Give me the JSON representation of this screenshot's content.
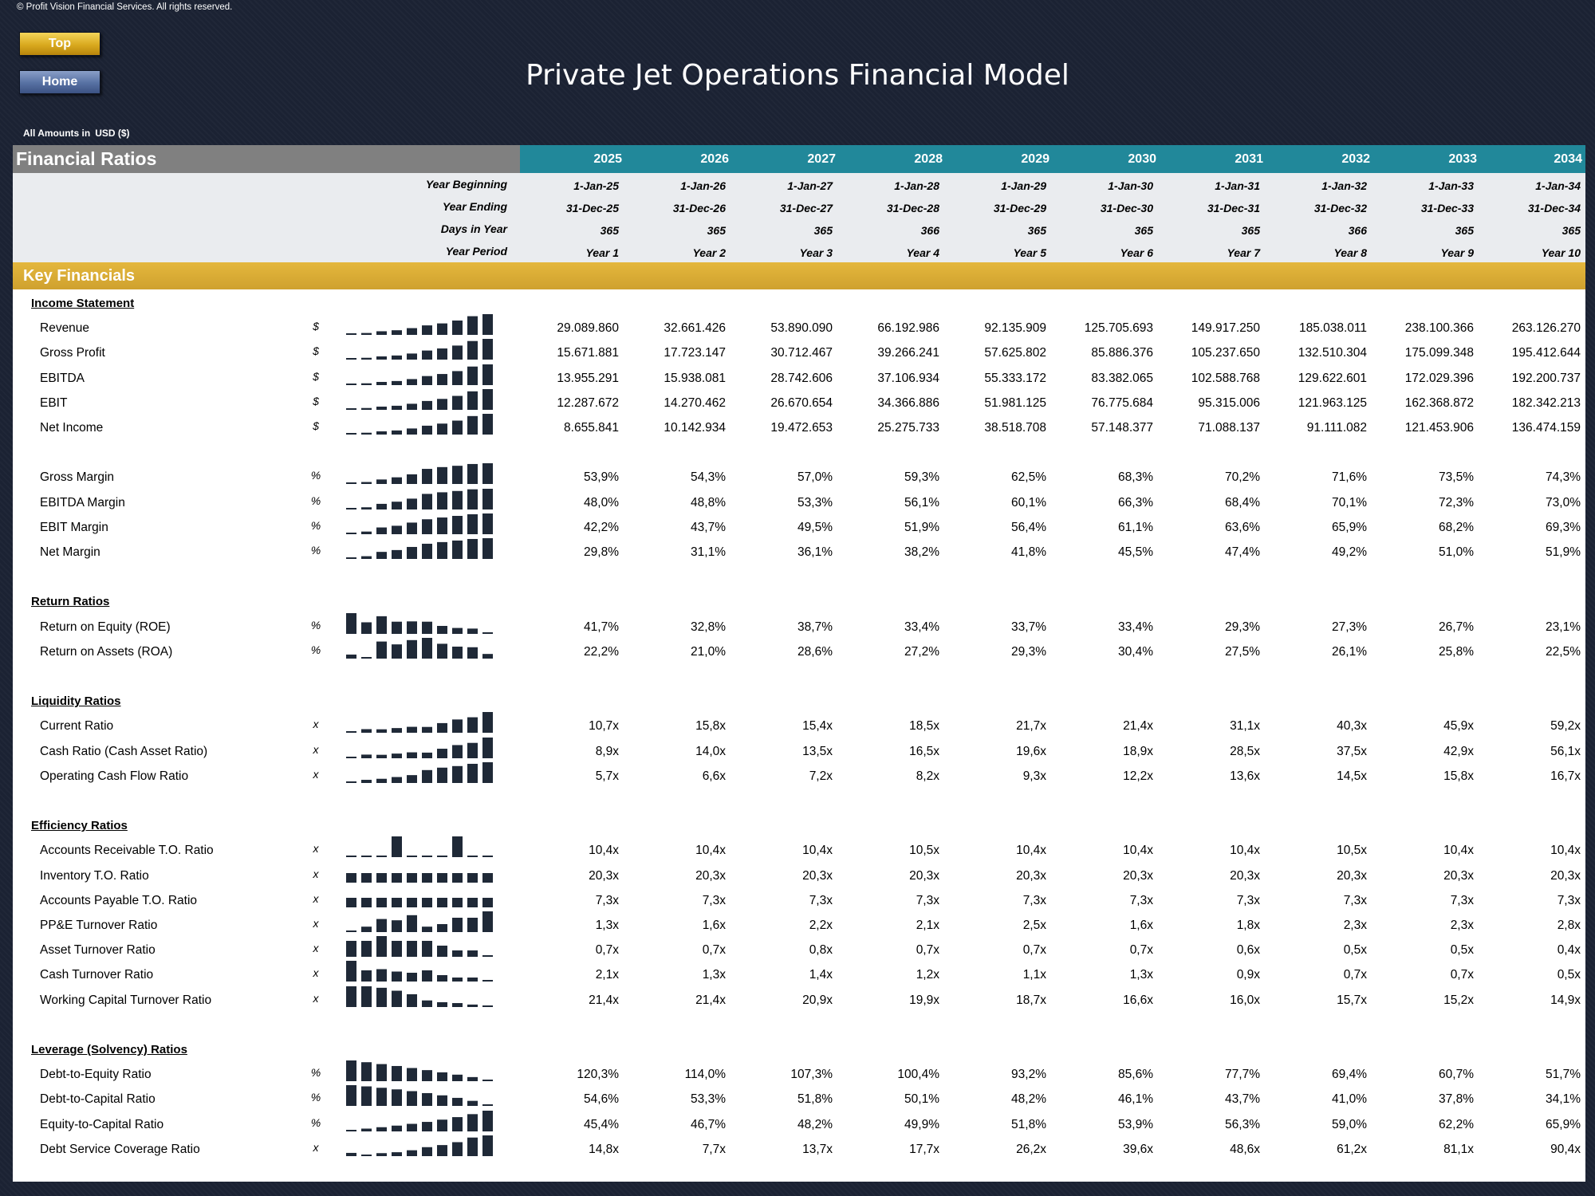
{
  "copyright": "© Profit Vision Financial Services. All rights reserved.",
  "nav": {
    "top_label": "Top",
    "home_label": "Home"
  },
  "title": "Private Jet Operations Financial Model",
  "amounts": {
    "label": "All Amounts in",
    "currency": "USD ($)"
  },
  "sheet": {
    "title": "Financial Ratios",
    "years": [
      "2025",
      "2026",
      "2027",
      "2028",
      "2029",
      "2030",
      "2031",
      "2032",
      "2033",
      "2034"
    ],
    "header_rows": [
      {
        "label": "Year Beginning",
        "values": [
          "1-Jan-25",
          "1-Jan-26",
          "1-Jan-27",
          "1-Jan-28",
          "1-Jan-29",
          "1-Jan-30",
          "1-Jan-31",
          "1-Jan-32",
          "1-Jan-33",
          "1-Jan-34"
        ]
      },
      {
        "label": "Year Ending",
        "values": [
          "31-Dec-25",
          "31-Dec-26",
          "31-Dec-27",
          "31-Dec-28",
          "31-Dec-29",
          "31-Dec-30",
          "31-Dec-31",
          "31-Dec-32",
          "31-Dec-33",
          "31-Dec-34"
        ]
      },
      {
        "label": "Days in Year",
        "values": [
          "365",
          "365",
          "365",
          "366",
          "365",
          "365",
          "365",
          "366",
          "365",
          "365"
        ]
      },
      {
        "label": "Year Period",
        "values": [
          "Year 1",
          "Year 2",
          "Year 3",
          "Year 4",
          "Year 5",
          "Year 6",
          "Year 7",
          "Year 8",
          "Year 9",
          "Year 10"
        ]
      }
    ],
    "band_label": "Key Financials",
    "sections": [
      {
        "title": "Income Statement",
        "rows": [
          {
            "label": "Revenue",
            "unit": "$",
            "values": [
              "29.089.860",
              "32.661.426",
              "53.890.090",
              "66.192.986",
              "92.135.909",
              "125.705.693",
              "149.917.250",
              "185.038.011",
              "238.100.366",
              "263.126.270"
            ]
          },
          {
            "label": "Gross Profit",
            "unit": "$",
            "values": [
              "15.671.881",
              "17.723.147",
              "30.712.467",
              "39.266.241",
              "57.625.802",
              "85.886.376",
              "105.237.650",
              "132.510.304",
              "175.099.348",
              "195.412.644"
            ]
          },
          {
            "label": "EBITDA",
            "unit": "$",
            "values": [
              "13.955.291",
              "15.938.081",
              "28.742.606",
              "37.106.934",
              "55.333.172",
              "83.382.065",
              "102.588.768",
              "129.622.601",
              "172.029.396",
              "192.200.737"
            ]
          },
          {
            "label": "EBIT",
            "unit": "$",
            "values": [
              "12.287.672",
              "14.270.462",
              "26.670.654",
              "34.366.886",
              "51.981.125",
              "76.775.684",
              "95.315.006",
              "121.963.125",
              "162.368.872",
              "182.342.213"
            ]
          },
          {
            "label": "Net Income",
            "unit": "$",
            "values": [
              "8.655.841",
              "10.142.934",
              "19.472.653",
              "25.275.733",
              "38.518.708",
              "57.148.377",
              "71.088.137",
              "91.111.082",
              "121.453.906",
              "136.474.159"
            ]
          },
          {
            "gap": true
          },
          {
            "label": "Gross Margin",
            "unit": "%",
            "values": [
              "53,9%",
              "54,3%",
              "57,0%",
              "59,3%",
              "62,5%",
              "68,3%",
              "70,2%",
              "71,6%",
              "73,5%",
              "74,3%"
            ]
          },
          {
            "label": "EBITDA Margin",
            "unit": "%",
            "values": [
              "48,0%",
              "48,8%",
              "53,3%",
              "56,1%",
              "60,1%",
              "66,3%",
              "68,4%",
              "70,1%",
              "72,3%",
              "73,0%"
            ]
          },
          {
            "label": "EBIT Margin",
            "unit": "%",
            "values": [
              "42,2%",
              "43,7%",
              "49,5%",
              "51,9%",
              "56,4%",
              "61,1%",
              "63,6%",
              "65,9%",
              "68,2%",
              "69,3%"
            ]
          },
          {
            "label": "Net Margin",
            "unit": "%",
            "values": [
              "29,8%",
              "31,1%",
              "36,1%",
              "38,2%",
              "41,8%",
              "45,5%",
              "47,4%",
              "49,2%",
              "51,0%",
              "51,9%"
            ]
          }
        ]
      },
      {
        "title": "Return Ratios",
        "rows": [
          {
            "label": "Return on Equity (ROE)",
            "unit": "%",
            "values": [
              "41,7%",
              "32,8%",
              "38,7%",
              "33,4%",
              "33,7%",
              "33,4%",
              "29,3%",
              "27,3%",
              "26,7%",
              "23,1%"
            ]
          },
          {
            "label": "Return on Assets (ROA)",
            "unit": "%",
            "values": [
              "22,2%",
              "21,0%",
              "28,6%",
              "27,2%",
              "29,3%",
              "30,4%",
              "27,5%",
              "26,1%",
              "25,8%",
              "22,5%"
            ]
          }
        ]
      },
      {
        "title": "Liquidity Ratios",
        "rows": [
          {
            "label": "Current Ratio",
            "unit": "x",
            "values": [
              "10,7x",
              "15,8x",
              "15,4x",
              "18,5x",
              "21,7x",
              "21,4x",
              "31,1x",
              "40,3x",
              "45,9x",
              "59,2x"
            ]
          },
          {
            "label": "Cash Ratio (Cash Asset Ratio)",
            "unit": "x",
            "values": [
              "8,9x",
              "14,0x",
              "13,5x",
              "16,5x",
              "19,6x",
              "18,9x",
              "28,5x",
              "37,5x",
              "42,9x",
              "56,1x"
            ]
          },
          {
            "label": "Operating Cash Flow Ratio",
            "unit": "x",
            "values": [
              "5,7x",
              "6,6x",
              "7,2x",
              "8,2x",
              "9,3x",
              "12,2x",
              "13,6x",
              "14,5x",
              "15,8x",
              "16,7x"
            ]
          }
        ]
      },
      {
        "title": "Efficiency Ratios",
        "rows": [
          {
            "label": "Accounts Receivable T.O. Ratio",
            "unit": "x",
            "values": [
              "10,4x",
              "10,4x",
              "10,4x",
              "10,5x",
              "10,4x",
              "10,4x",
              "10,4x",
              "10,5x",
              "10,4x",
              "10,4x"
            ]
          },
          {
            "label": "Inventory T.O. Ratio",
            "unit": "x",
            "values": [
              "20,3x",
              "20,3x",
              "20,3x",
              "20,3x",
              "20,3x",
              "20,3x",
              "20,3x",
              "20,3x",
              "20,3x",
              "20,3x"
            ]
          },
          {
            "label": "Accounts Payable T.O. Ratio",
            "unit": "x",
            "values": [
              "7,3x",
              "7,3x",
              "7,3x",
              "7,3x",
              "7,3x",
              "7,3x",
              "7,3x",
              "7,3x",
              "7,3x",
              "7,3x"
            ]
          },
          {
            "label": "PP&E Turnover Ratio",
            "unit": "x",
            "values": [
              "1,3x",
              "1,6x",
              "2,2x",
              "2,1x",
              "2,5x",
              "1,6x",
              "1,8x",
              "2,3x",
              "2,3x",
              "2,8x"
            ]
          },
          {
            "label": "Asset Turnover Ratio",
            "unit": "x",
            "values": [
              "0,7x",
              "0,7x",
              "0,8x",
              "0,7x",
              "0,7x",
              "0,7x",
              "0,6x",
              "0,5x",
              "0,5x",
              "0,4x"
            ]
          },
          {
            "label": "Cash Turnover Ratio",
            "unit": "x",
            "values": [
              "2,1x",
              "1,3x",
              "1,4x",
              "1,2x",
              "1,1x",
              "1,3x",
              "0,9x",
              "0,7x",
              "0,7x",
              "0,5x"
            ]
          },
          {
            "label": "Working Capital Turnover Ratio",
            "unit": "x",
            "values": [
              "21,4x",
              "21,4x",
              "20,9x",
              "19,9x",
              "18,7x",
              "16,6x",
              "16,0x",
              "15,7x",
              "15,2x",
              "14,9x"
            ]
          }
        ]
      },
      {
        "title": "Leverage (Solvency) Ratios",
        "rows": [
          {
            "label": "Debt-to-Equity Ratio",
            "unit": "%",
            "values": [
              "120,3%",
              "114,0%",
              "107,3%",
              "100,4%",
              "93,2%",
              "85,6%",
              "77,7%",
              "69,4%",
              "60,7%",
              "51,7%"
            ]
          },
          {
            "label": "Debt-to-Capital Ratio",
            "unit": "%",
            "values": [
              "54,6%",
              "53,3%",
              "51,8%",
              "50,1%",
              "48,2%",
              "46,1%",
              "43,7%",
              "41,0%",
              "37,8%",
              "34,1%"
            ]
          },
          {
            "label": "Equity-to-Capital Ratio",
            "unit": "%",
            "values": [
              "45,4%",
              "46,7%",
              "48,2%",
              "49,9%",
              "51,8%",
              "53,9%",
              "56,3%",
              "59,0%",
              "62,2%",
              "65,9%"
            ]
          },
          {
            "label": "Debt Service Coverage Ratio",
            "unit": "x",
            "values": [
              "14,8x",
              "7,7x",
              "13,7x",
              "17,7x",
              "26,2x",
              "39,6x",
              "48,6x",
              "61,2x",
              "81,1x",
              "90,4x"
            ]
          }
        ]
      }
    ]
  },
  "colors": {
    "background": "#1b2233",
    "title_band": "#808080",
    "year_band": "#21889a",
    "key_band": "#d9aa32",
    "spark": "#1f2937"
  }
}
